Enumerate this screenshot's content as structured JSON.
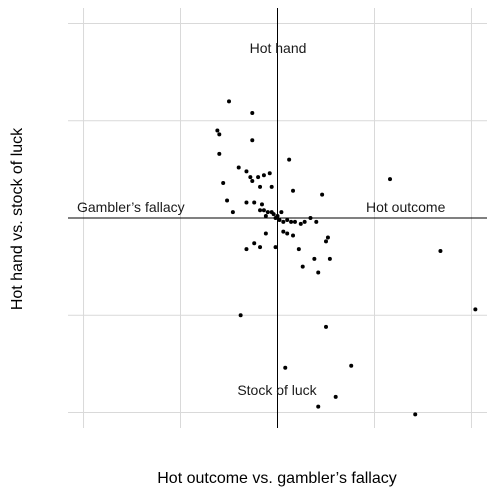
{
  "chart_data": {
    "type": "scatter",
    "xlabel": "Hot outcome vs. gambler’s fallacy",
    "ylabel": "Hot hand vs. stock of luck",
    "xlim": [
      -1.08,
      1.08
    ],
    "ylim": [
      -1.08,
      1.08
    ],
    "grid_x": [
      -1,
      -0.5,
      0,
      0.5,
      1
    ],
    "grid_y": [
      -1,
      -0.5,
      0,
      0.5,
      1
    ],
    "grid": true,
    "reference_lines": {
      "x": 0,
      "y": 0
    },
    "quadrant_labels": {
      "top": "Hot hand",
      "bottom": "Stock of luck",
      "left": "Gambler’s fallacy",
      "right": "Hot outcome"
    },
    "points": [
      {
        "x": -0.25,
        "y": 0.6
      },
      {
        "x": -0.13,
        "y": 0.54
      },
      {
        "x": -0.31,
        "y": 0.45
      },
      {
        "x": -0.3,
        "y": 0.43
      },
      {
        "x": -0.13,
        "y": 0.4
      },
      {
        "x": -0.3,
        "y": 0.33
      },
      {
        "x": 0.06,
        "y": 0.3
      },
      {
        "x": -0.2,
        "y": 0.26
      },
      {
        "x": -0.14,
        "y": 0.21
      },
      {
        "x": -0.07,
        "y": 0.22
      },
      {
        "x": -0.1,
        "y": 0.21
      },
      {
        "x": -0.04,
        "y": 0.23
      },
      {
        "x": -0.16,
        "y": 0.24
      },
      {
        "x": 0.58,
        "y": 0.2
      },
      {
        "x": -0.28,
        "y": 0.18
      },
      {
        "x": -0.13,
        "y": 0.19
      },
      {
        "x": -0.09,
        "y": 0.16
      },
      {
        "x": -0.03,
        "y": 0.16
      },
      {
        "x": 0.08,
        "y": 0.14
      },
      {
        "x": 0.23,
        "y": 0.12
      },
      {
        "x": -0.26,
        "y": 0.09
      },
      {
        "x": -0.16,
        "y": 0.08
      },
      {
        "x": -0.12,
        "y": 0.08
      },
      {
        "x": -0.08,
        "y": 0.07
      },
      {
        "x": -0.23,
        "y": 0.03
      },
      {
        "x": -0.09,
        "y": 0.04
      },
      {
        "x": -0.07,
        "y": 0.04
      },
      {
        "x": -0.05,
        "y": 0.03
      },
      {
        "x": -0.03,
        "y": 0.03
      },
      {
        "x": -0.06,
        "y": 0.01
      },
      {
        "x": -0.02,
        "y": 0.02
      },
      {
        "x": -0.01,
        "y": 0.0
      },
      {
        "x": 0.0,
        "y": 0.01
      },
      {
        "x": 0.02,
        "y": 0.03
      },
      {
        "x": 0.01,
        "y": -0.01
      },
      {
        "x": 0.03,
        "y": -0.02
      },
      {
        "x": 0.05,
        "y": -0.01
      },
      {
        "x": 0.07,
        "y": -0.02
      },
      {
        "x": 0.09,
        "y": -0.02
      },
      {
        "x": 0.12,
        "y": -0.03
      },
      {
        "x": 0.14,
        "y": -0.02
      },
      {
        "x": 0.17,
        "y": 0.0
      },
      {
        "x": 0.2,
        "y": -0.02
      },
      {
        "x": 0.03,
        "y": -0.07
      },
      {
        "x": 0.05,
        "y": -0.08
      },
      {
        "x": 0.08,
        "y": -0.09
      },
      {
        "x": -0.06,
        "y": -0.08
      },
      {
        "x": 0.26,
        "y": -0.1
      },
      {
        "x": 0.25,
        "y": -0.12
      },
      {
        "x": -0.12,
        "y": -0.13
      },
      {
        "x": -0.09,
        "y": -0.15
      },
      {
        "x": -0.01,
        "y": -0.15
      },
      {
        "x": 0.11,
        "y": -0.16
      },
      {
        "x": -0.16,
        "y": -0.16
      },
      {
        "x": 0.19,
        "y": -0.21
      },
      {
        "x": 0.27,
        "y": -0.21
      },
      {
        "x": 0.13,
        "y": -0.25
      },
      {
        "x": 0.21,
        "y": -0.28
      },
      {
        "x": 0.84,
        "y": -0.17
      },
      {
        "x": -0.19,
        "y": -0.5
      },
      {
        "x": 1.02,
        "y": -0.47
      },
      {
        "x": 0.25,
        "y": -0.56
      },
      {
        "x": 0.38,
        "y": -0.76
      },
      {
        "x": 0.04,
        "y": -0.77
      },
      {
        "x": 0.3,
        "y": -0.92
      },
      {
        "x": 0.21,
        "y": -0.97
      },
      {
        "x": 0.71,
        "y": -1.01
      }
    ]
  }
}
